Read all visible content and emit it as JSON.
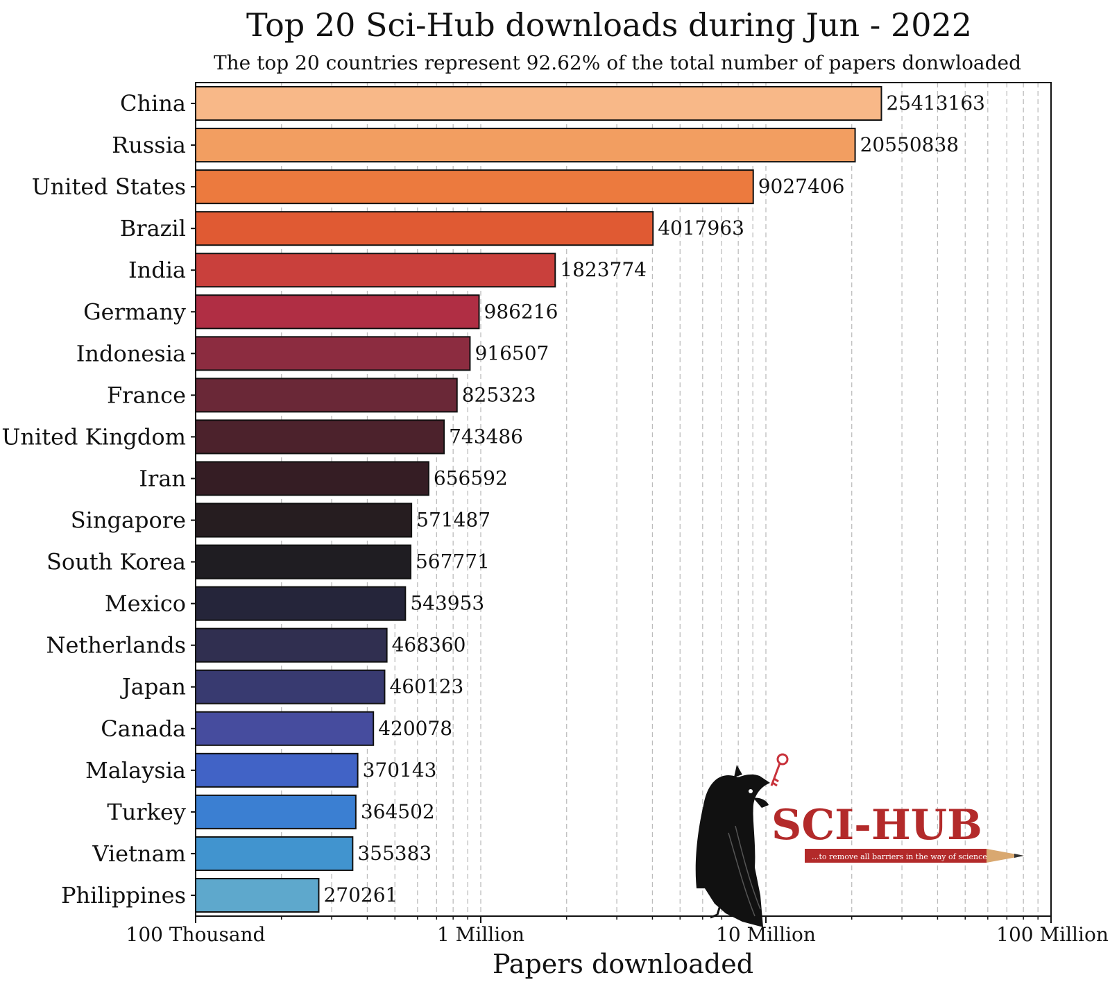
{
  "chart_data": {
    "type": "bar",
    "orientation": "horizontal",
    "title": "Top 20 Sci-Hub downloads during Jun - 2022",
    "subtitle": "The top 20 countries represent 92.62% of the total number of papers donwloaded",
    "xlabel": "Papers downloaded",
    "xscale": "log",
    "xlim": [
      100000,
      100000000
    ],
    "xticks": [
      {
        "value": 100000,
        "label": "100 Thousand"
      },
      {
        "value": 1000000,
        "label": "1 Million"
      },
      {
        "value": 10000000,
        "label": "10 Million"
      },
      {
        "value": 100000000,
        "label": "100 Million"
      }
    ],
    "grid": "vertical dashed (minor + major)",
    "categories": [
      "China",
      "Russia",
      "United States",
      "Brazil",
      "India",
      "Germany",
      "Indonesia",
      "France",
      "United Kingdom",
      "Iran",
      "Singapore",
      "South Korea",
      "Mexico",
      "Netherlands",
      "Japan",
      "Canada",
      "Malaysia",
      "Turkey",
      "Vietnam",
      "Philippines"
    ],
    "values": [
      25413163,
      20550838,
      9027406,
      4017963,
      1823774,
      986216,
      916507,
      825323,
      743486,
      656592,
      571487,
      567771,
      543953,
      468360,
      460123,
      420078,
      370143,
      364502,
      355383,
      270261
    ],
    "value_labels": [
      "25413163",
      "20550838",
      "9027406",
      "4017963",
      "1823774",
      "986216",
      "916507",
      "825323",
      "743486",
      "656592",
      "571487",
      "567771",
      "543953",
      "468360",
      "460123",
      "420078",
      "370143",
      "364502",
      "355383",
      "270261"
    ],
    "colors": [
      "#f8b888",
      "#f29e61",
      "#ec7a3e",
      "#e05a33",
      "#c9403c",
      "#b02e44",
      "#8c2c40",
      "#6a2837",
      "#4c222c",
      "#351d24",
      "#261d20",
      "#1f1d22",
      "#25253a",
      "#302f50",
      "#383a70",
      "#464c9e",
      "#4163c6",
      "#3b7fd2",
      "#4194cf",
      "#5ea8cc"
    ]
  },
  "logo": {
    "name": "SCI-HUB",
    "tagline": "...to remove all barriers in the way of science",
    "icon": "raven-with-key-icon",
    "text_color": "#b32a2a"
  }
}
